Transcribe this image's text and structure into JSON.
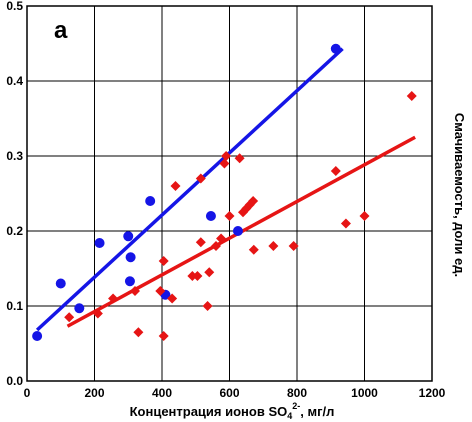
{
  "chart_data": {
    "type": "scatter",
    "panel_label": "а",
    "xlabel": "Концентрация ионов SO",
    "xlabel_sub": "4",
    "xlabel_sup": "2-",
    "xlabel_tail": ", мг/л",
    "ylabel": "Смачиваемость, доли ед.",
    "xlim": [
      0,
      1200
    ],
    "ylim": [
      0,
      0.5
    ],
    "xticks": [
      0,
      200,
      400,
      600,
      800,
      1000,
      1200
    ],
    "yticks": [
      0,
      0.1,
      0.2,
      0.3,
      0.4,
      0.5
    ],
    "ytick_labels": [
      "0.0",
      "0.1",
      "0.2",
      "0.3",
      "0.4",
      "0.5"
    ],
    "grid": true,
    "series": [
      {
        "marker": "circle",
        "color": "#1515e6",
        "points": [
          [
            30,
            0.06
          ],
          [
            100,
            0.13
          ],
          [
            155,
            0.097
          ],
          [
            215,
            0.184
          ],
          [
            300,
            0.193
          ],
          [
            305,
            0.133
          ],
          [
            307,
            0.165
          ],
          [
            365,
            0.24
          ],
          [
            410,
            0.115
          ],
          [
            545,
            0.22
          ],
          [
            625,
            0.2
          ],
          [
            915,
            0.443
          ]
        ],
        "trend": [
          [
            30,
            0.068
          ],
          [
            935,
            0.443
          ]
        ]
      },
      {
        "marker": "diamond",
        "color": "#e61515",
        "points": [
          [
            125,
            0.085
          ],
          [
            210,
            0.09
          ],
          [
            255,
            0.11
          ],
          [
            320,
            0.12
          ],
          [
            330,
            0.065
          ],
          [
            405,
            0.06
          ],
          [
            395,
            0.12
          ],
          [
            405,
            0.16
          ],
          [
            430,
            0.11
          ],
          [
            440,
            0.26
          ],
          [
            490,
            0.14
          ],
          [
            505,
            0.14
          ],
          [
            515,
            0.185
          ],
          [
            515,
            0.27
          ],
          [
            535,
            0.1
          ],
          [
            540,
            0.145
          ],
          [
            560,
            0.18
          ],
          [
            575,
            0.19
          ],
          [
            585,
            0.29
          ],
          [
            590,
            0.3
          ],
          [
            600,
            0.22
          ],
          [
            630,
            0.297
          ],
          [
            640,
            0.225
          ],
          [
            650,
            0.23
          ],
          [
            660,
            0.235
          ],
          [
            670,
            0.24
          ],
          [
            672,
            0.175
          ],
          [
            730,
            0.18
          ],
          [
            790,
            0.18
          ],
          [
            915,
            0.28
          ],
          [
            945,
            0.21
          ],
          [
            1000,
            0.22
          ],
          [
            1140,
            0.38
          ]
        ],
        "trend": [
          [
            120,
            0.073
          ],
          [
            1150,
            0.325
          ]
        ]
      }
    ]
  }
}
